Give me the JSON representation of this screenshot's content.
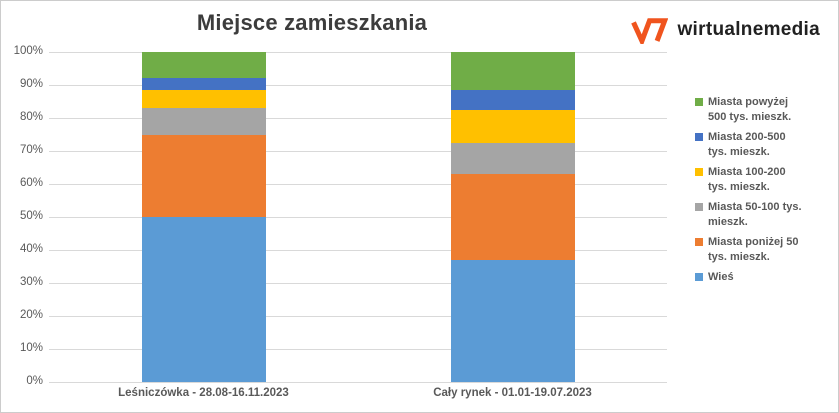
{
  "title": "Miejsce zamieszkania",
  "logo": {
    "icon": "wm-zigzag-mark",
    "text": "wirtualnemedia",
    "mark_color": "#f0541e",
    "text_color": "#212121"
  },
  "chart_data": {
    "type": "bar",
    "subtype": "stacked-100-percent-column",
    "title": "Miejsce zamieszkania",
    "categories": [
      "Leśniczówka - 28.08-16.11.2023",
      "Cały rynek - 01.01-19.07.2023"
    ],
    "series": [
      {
        "name": "Wieś",
        "color": "#5b9bd5",
        "values": [
          50,
          37
        ]
      },
      {
        "name": "Miasta poniżej 50 tys. mieszk.",
        "color": "#ed7d31",
        "values": [
          25,
          26
        ]
      },
      {
        "name": "Miasta 50-100 tys. mieszk.",
        "color": "#a5a5a5",
        "values": [
          8,
          9.5
        ]
      },
      {
        "name": "Miasta 100-200 tys. mieszk.",
        "color": "#ffc000",
        "values": [
          5.5,
          10
        ]
      },
      {
        "name": "Miasta 200-500 tys. mieszk.",
        "color": "#4472c4",
        "values": [
          3.5,
          6
        ]
      },
      {
        "name": "Miasta powyżej 500 tys. mieszk.",
        "color": "#70ad47",
        "values": [
          8,
          11.5
        ]
      }
    ],
    "stack_order": "bottom-to-top",
    "ylabel": "",
    "xlabel": "",
    "ylim": [
      0,
      100
    ],
    "y_ticks": [
      "100%",
      "90%",
      "80%",
      "70%",
      "60%",
      "50%",
      "40%",
      "30%",
      "20%",
      "10%",
      "0%"
    ],
    "grid": true,
    "gridline_color": "#d9d9d9",
    "legend_position": "right",
    "legend": [
      {
        "color": "#70ad47",
        "lines": [
          "Miasta powyżej",
          "500 tys. mieszk."
        ],
        "label": "Miasta powyżej 500 tys. mieszk."
      },
      {
        "color": "#4472c4",
        "lines": [
          "Miasta 200-500",
          "tys. mieszk."
        ],
        "label": "Miasta 200-500 tys. mieszk."
      },
      {
        "color": "#ffc000",
        "lines": [
          "Miasta 100-200",
          "tys. mieszk."
        ],
        "label": "Miasta 100-200 tys. mieszk."
      },
      {
        "color": "#a5a5a5",
        "lines": [
          "Miasta 50-100 tys.",
          "mieszk."
        ],
        "label": "Miasta 50-100 tys. mieszk."
      },
      {
        "color": "#ed7d31",
        "lines": [
          "Miasta poniżej 50",
          "tys. mieszk."
        ],
        "label": "Miasta poniżej 50 tys. mieszk."
      },
      {
        "color": "#5b9bd5",
        "lines": [
          "Wieś"
        ],
        "label": "Wieś"
      }
    ]
  }
}
